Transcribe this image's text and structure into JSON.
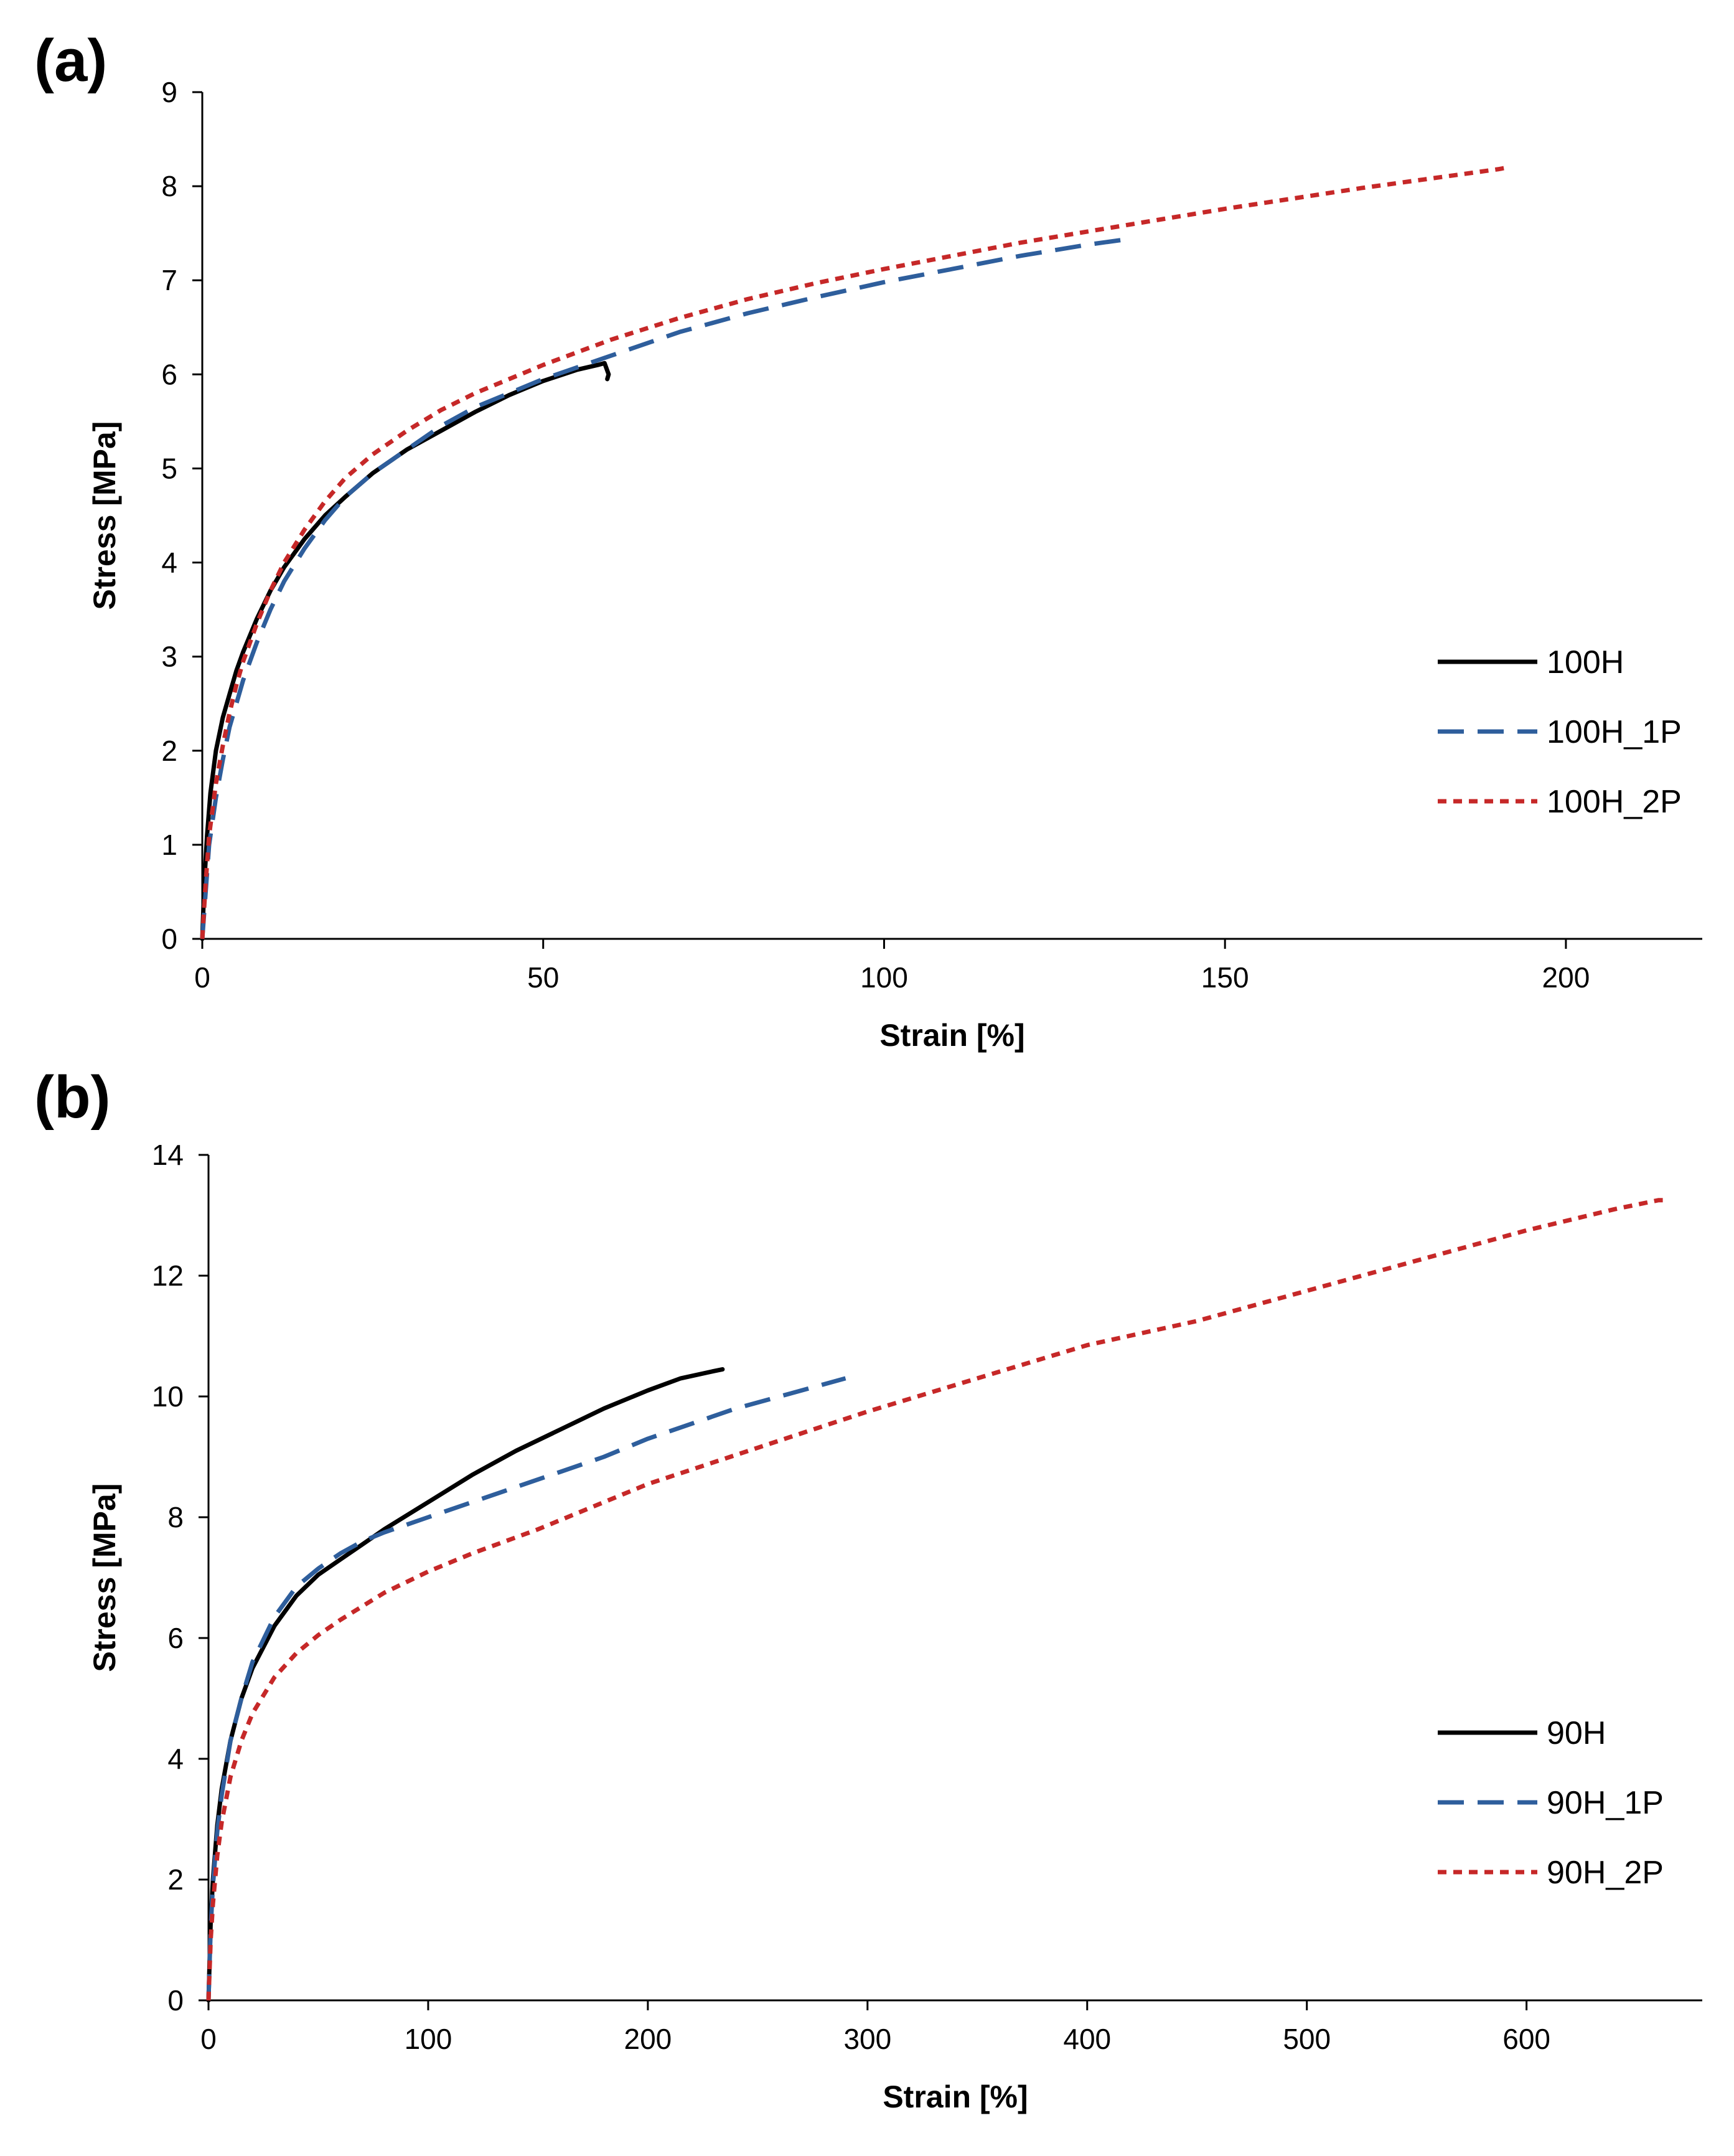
{
  "chart_data": [
    {
      "type": "line",
      "panel_label": "(a)",
      "title": "",
      "xlabel": "Strain [%]",
      "ylabel": "Stress [MPa]",
      "xlim": [
        0,
        220
      ],
      "ylim": [
        0,
        9
      ],
      "xticks": [
        0,
        50,
        100,
        150,
        200
      ],
      "yticks": [
        0,
        1,
        2,
        3,
        4,
        5,
        6,
        7,
        8,
        9
      ],
      "grid": false,
      "legend_position": "right",
      "series": [
        {
          "name": "100H",
          "color": "#000000",
          "style": "solid",
          "x": [
            0,
            0.3,
            0.7,
            1.2,
            2,
            3,
            4,
            5,
            6,
            8,
            10,
            12,
            15,
            18,
            21,
            25,
            30,
            35,
            40,
            45,
            50,
            55,
            58,
            59,
            59.6,
            59.4
          ],
          "y": [
            0,
            0.6,
            1.1,
            1.55,
            2.0,
            2.35,
            2.6,
            2.85,
            3.05,
            3.4,
            3.7,
            3.95,
            4.25,
            4.5,
            4.7,
            4.95,
            5.2,
            5.4,
            5.6,
            5.78,
            5.93,
            6.05,
            6.1,
            6.12,
            6.0,
            5.95
          ]
        },
        {
          "name": "100H_1P",
          "color": "#2E5E9C",
          "style": "dashed",
          "x": [
            0,
            0.5,
            1,
            2,
            3,
            4,
            5,
            6,
            8,
            10,
            12,
            15,
            18,
            21,
            25,
            30,
            35,
            40,
            50,
            60,
            70,
            80,
            90,
            100,
            110,
            120,
            130,
            135,
            136.5
          ],
          "y": [
            0,
            0.5,
            1.0,
            1.5,
            1.9,
            2.25,
            2.5,
            2.75,
            3.15,
            3.5,
            3.8,
            4.15,
            4.45,
            4.7,
            4.95,
            5.2,
            5.45,
            5.65,
            5.95,
            6.2,
            6.45,
            6.65,
            6.82,
            6.98,
            7.12,
            7.26,
            7.38,
            7.43,
            7.38
          ]
        },
        {
          "name": "100H_2P",
          "color": "#C62828",
          "style": "dotted",
          "x": [
            0,
            0.5,
            1,
            2,
            3,
            4,
            5,
            6,
            8,
            10,
            12,
            15,
            18,
            21,
            25,
            30,
            35,
            40,
            50,
            60,
            70,
            80,
            90,
            100,
            110,
            120,
            130,
            140,
            150,
            160,
            170,
            180,
            190,
            191.5
          ],
          "y": [
            0,
            0.6,
            1.1,
            1.65,
            2.05,
            2.4,
            2.7,
            2.95,
            3.35,
            3.7,
            4.0,
            4.35,
            4.65,
            4.9,
            5.15,
            5.4,
            5.62,
            5.8,
            6.1,
            6.37,
            6.6,
            6.8,
            6.97,
            7.12,
            7.26,
            7.4,
            7.52,
            7.64,
            7.76,
            7.87,
            7.98,
            8.08,
            8.18,
            8.2
          ]
        }
      ]
    },
    {
      "type": "line",
      "panel_label": "(b)",
      "title": "",
      "xlabel": "Strain [%]",
      "ylabel": "Stress [MPa]",
      "xlim": [
        0,
        680
      ],
      "ylim": [
        0,
        14
      ],
      "xticks": [
        0,
        100,
        200,
        300,
        400,
        500,
        600
      ],
      "yticks": [
        0,
        2,
        4,
        6,
        8,
        10,
        12,
        14
      ],
      "grid": false,
      "legend_position": "right",
      "series": [
        {
          "name": "90H",
          "color": "#000000",
          "style": "solid",
          "x": [
            0,
            1,
            2,
            4,
            6,
            10,
            15,
            20,
            30,
            40,
            50,
            60,
            70,
            80,
            100,
            120,
            140,
            160,
            180,
            200,
            215,
            230,
            234
          ],
          "y": [
            0,
            1.3,
            2.0,
            2.9,
            3.5,
            4.3,
            5.0,
            5.5,
            6.2,
            6.7,
            7.05,
            7.3,
            7.55,
            7.8,
            8.25,
            8.7,
            9.1,
            9.45,
            9.8,
            10.1,
            10.3,
            10.42,
            10.45
          ]
        },
        {
          "name": "90H_1P",
          "color": "#2E5E9C",
          "style": "dashed",
          "x": [
            0,
            1,
            2,
            4,
            6,
            10,
            15,
            20,
            30,
            40,
            50,
            60,
            70,
            80,
            100,
            120,
            140,
            160,
            180,
            200,
            220,
            240,
            260,
            280,
            290
          ],
          "y": [
            0,
            1.2,
            1.9,
            2.8,
            3.4,
            4.3,
            5.0,
            5.6,
            6.35,
            6.85,
            7.15,
            7.4,
            7.6,
            7.75,
            8.0,
            8.25,
            8.5,
            8.75,
            9.0,
            9.3,
            9.55,
            9.8,
            10.0,
            10.2,
            10.3
          ]
        },
        {
          "name": "90H_2P",
          "color": "#C62828",
          "style": "dotted",
          "x": [
            0,
            1,
            2,
            4,
            6,
            10,
            15,
            20,
            30,
            40,
            50,
            60,
            80,
            100,
            120,
            150,
            200,
            250,
            300,
            350,
            400,
            450,
            500,
            550,
            600,
            640,
            660,
            665
          ],
          "y": [
            0,
            1.0,
            1.6,
            2.4,
            2.95,
            3.7,
            4.3,
            4.75,
            5.35,
            5.75,
            6.05,
            6.3,
            6.75,
            7.1,
            7.4,
            7.8,
            8.55,
            9.15,
            9.75,
            10.3,
            10.85,
            11.25,
            11.75,
            12.25,
            12.75,
            13.1,
            13.25,
            13.25
          ]
        }
      ]
    }
  ]
}
